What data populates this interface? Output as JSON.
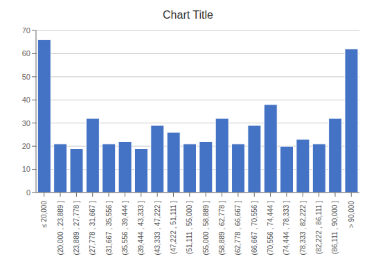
{
  "chart_data": {
    "type": "bar",
    "title": "Chart Title",
    "categories": [
      "≤ 20,000",
      "(20,000 , 23,889 ]",
      "(23,889 , 27,778 ]",
      "(27,778 , 31,667 ]",
      "(31,667 , 35,556 ]",
      "(35,556 , 39,444 ]",
      "(39,444 , 43,333 ]",
      "(43,333 , 47,222 ]",
      "(47,222 , 51,111 ]",
      "(51,111 , 55,000 ]",
      "(55,000 , 58,889 ]",
      "(58,889 , 62,778 ]",
      "(62,778 , 66,667 ]",
      "(66,667 , 70,556 ]",
      "(70,556 , 74,444 ]",
      "(74,444 , 78,333 ]",
      "(78,333 , 82,222 ]",
      "(82,222 , 86,111 ]",
      "(86,111 , 90,000 ]",
      "> 90,000"
    ],
    "values": [
      66,
      21,
      19,
      32,
      21,
      22,
      19,
      29,
      26,
      21,
      22,
      32,
      21,
      29,
      38,
      20,
      23,
      21,
      32,
      62
    ],
    "color": "#4472C4",
    "ylim": [
      0,
      70
    ],
    "yticks": [
      0,
      10,
      20,
      30,
      40,
      50,
      60,
      70
    ],
    "grid": true
  }
}
